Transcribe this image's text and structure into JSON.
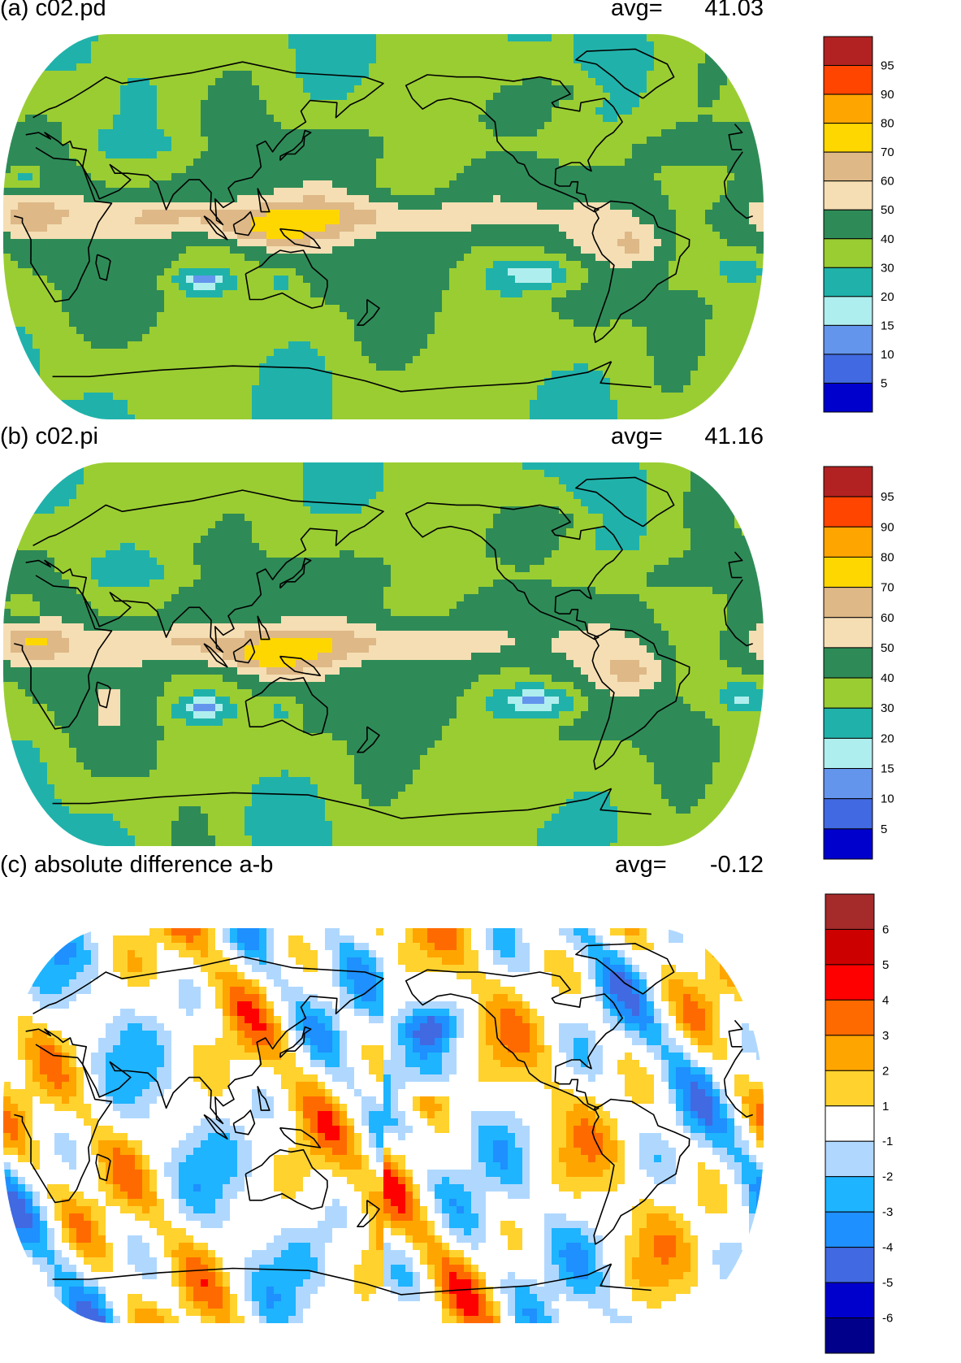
{
  "panels": [
    {
      "id": "a",
      "title": "(a) c02.pd",
      "avg_label": "avg=",
      "avg_value": "41.03",
      "scale": "pct",
      "colorbar": {
        "labels": [
          "95",
          "90",
          "80",
          "70",
          "60",
          "50",
          "40",
          "30",
          "20",
          "15",
          "10",
          "5"
        ],
        "colors": [
          "#b22222",
          "#ff4500",
          "#ffa500",
          "#ffd700",
          "#deb887",
          "#f5deb3",
          "#2e8b57",
          "#9acd32",
          "#20b2aa",
          "#afeeee",
          "#6495ed",
          "#4169e1",
          "#0000cd"
        ]
      }
    },
    {
      "id": "b",
      "title": "(b) c02.pi",
      "avg_label": "avg=",
      "avg_value": "41.16",
      "scale": "pct",
      "colorbar": {
        "labels": [
          "95",
          "90",
          "80",
          "70",
          "60",
          "50",
          "40",
          "30",
          "20",
          "15",
          "10",
          "5"
        ],
        "colors": [
          "#b22222",
          "#ff4500",
          "#ffa500",
          "#ffd700",
          "#deb887",
          "#f5deb3",
          "#2e8b57",
          "#9acd32",
          "#20b2aa",
          "#afeeee",
          "#6495ed",
          "#4169e1",
          "#0000cd"
        ]
      }
    },
    {
      "id": "c",
      "title": "(c) absolute difference a-b",
      "avg_label": "avg=",
      "avg_value": "-0.12",
      "scale": "diff",
      "colorbar": {
        "labels": [
          "6",
          "5",
          "4",
          "3",
          "2",
          "1",
          "-1",
          "-2",
          "-3",
          "-4",
          "-5",
          "-6"
        ],
        "colors": [
          "#a52a2a",
          "#cd0000",
          "#ff0000",
          "#ff6a00",
          "#ffa500",
          "#ffd22e",
          "#ffffff",
          "#b0d8ff",
          "#1eb4ff",
          "#1e90ff",
          "#4169e1",
          "#0000cd",
          "#00008b"
        ]
      }
    }
  ]
}
